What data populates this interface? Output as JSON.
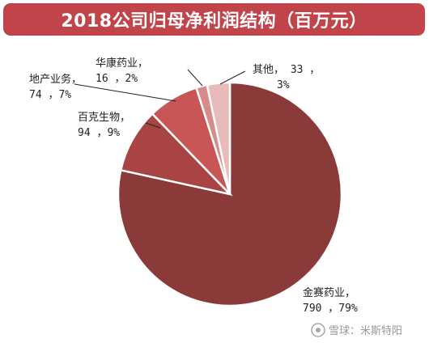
{
  "title": "2018公司归母净利润结构（百万元）",
  "watermark": "雪球：米斯特阳",
  "chart_data": {
    "type": "pie",
    "title": "2018公司归母净利润结构（百万元）",
    "slices": [
      {
        "name": "金赛药业",
        "value": 790,
        "percent": "79%",
        "color": "#8b3a3a",
        "label_line1": "金赛药业，",
        "label_line2": "790 ，79%"
      },
      {
        "name": "百克生物",
        "value": 94,
        "percent": "9%",
        "color": "#a84444",
        "label_line1": "百克生物，",
        "label_line2": "94 ，9%"
      },
      {
        "name": "地产业务",
        "value": 74,
        "percent": "7%",
        "color": "#c85656",
        "label_line1": "地产业务，",
        "label_line2": "74 ，7%"
      },
      {
        "name": "华康药业",
        "value": 16,
        "percent": "2%",
        "color": "#d98b8b",
        "label_line1": "华康药业，",
        "label_line2": "16 ，2%"
      },
      {
        "name": "其他",
        "value": 33,
        "percent": "3%",
        "color": "#e8baba",
        "label_line1": "其他， 33 ，",
        "label_line2": "3%"
      }
    ]
  }
}
